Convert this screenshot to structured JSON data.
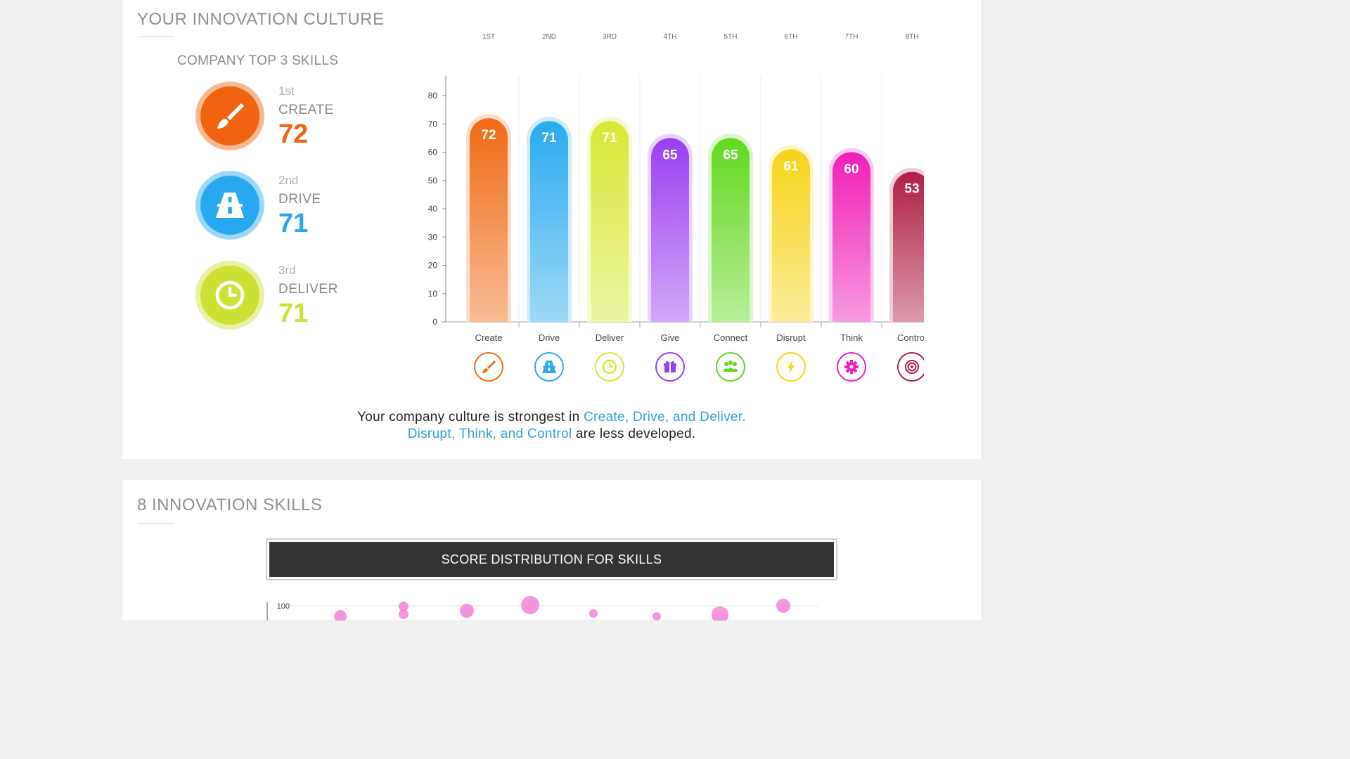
{
  "culture": {
    "title": "YOUR INNOVATION CULTURE",
    "top3_title": "COMPANY TOP 3 SKILLS",
    "top3": [
      {
        "rank": "1st",
        "name": "CREATE",
        "score": "72",
        "color": "#f0640f",
        "icon": "paintbrush-icon"
      },
      {
        "rank": "2nd",
        "name": "DRIVE",
        "score": "71",
        "color": "#28a9ef",
        "icon": "road-icon"
      },
      {
        "rank": "3rd",
        "name": "DELIVER",
        "score": "71",
        "color": "#cde034",
        "icon": "clock-icon"
      }
    ],
    "summary": {
      "line1_prefix": "Your company culture is strongest in ",
      "line1_highlight": "Create, Drive, and Deliver.",
      "line2_highlight": "Disrupt, Think, and Control",
      "line2_suffix": " are less developed."
    }
  },
  "chart_data": {
    "type": "bar",
    "categories": [
      "Create",
      "Drive",
      "Deliver",
      "Give",
      "Connect",
      "Disrupt",
      "Think",
      "Control"
    ],
    "ranks": [
      "1ST",
      "2ND",
      "3RD",
      "4TH",
      "5TH",
      "6TH",
      "7TH",
      "8TH"
    ],
    "values": [
      72,
      71,
      71,
      65,
      65,
      61,
      60,
      53
    ],
    "value_labels": [
      "72",
      "71",
      "71",
      "65",
      "65",
      "61",
      "60",
      "53"
    ],
    "yticks": [
      "0",
      "10",
      "20",
      "30",
      "40",
      "50",
      "60",
      "70",
      "80"
    ],
    "ylim": [
      0,
      86
    ],
    "colors": [
      "#f06a14",
      "#2aaaf0",
      "#d6e935",
      "#9a3ff0",
      "#62d91f",
      "#f6d51a",
      "#f01fb7",
      "#b01f45"
    ],
    "icons": [
      "paintbrush-icon",
      "road-icon",
      "clock-icon",
      "gift-icon",
      "people-icon",
      "lightning-icon",
      "gear-icon",
      "target-icon"
    ],
    "grid": "vertical"
  },
  "skills": {
    "title": "8 INNOVATION SKILLS",
    "banner": "SCORE DISTRIBUTION FOR SKILLS",
    "dist_ytick": "100"
  }
}
